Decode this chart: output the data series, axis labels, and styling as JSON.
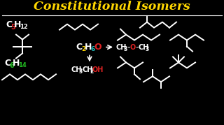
{
  "bg_color": "#000000",
  "title": "Constitutional Isomers",
  "title_color": "#FFD700",
  "white": "#FFFFFF",
  "yellow": "#FFD700",
  "red": "#DD2222",
  "green": "#22BB22",
  "cyan": "#22BBBB"
}
